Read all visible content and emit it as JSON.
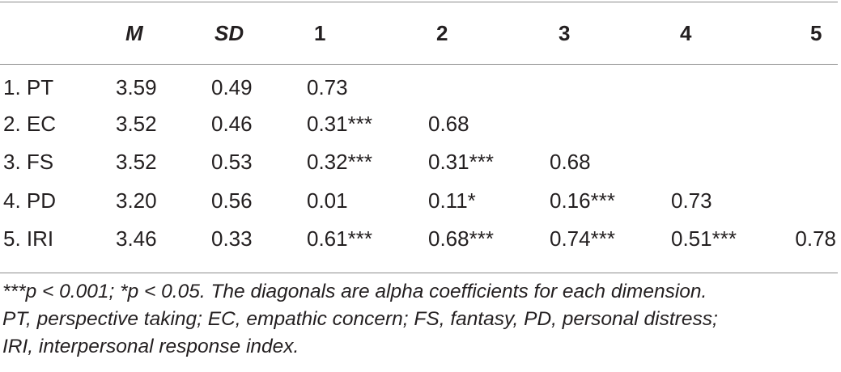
{
  "table": {
    "headers": [
      "",
      "M",
      "SD",
      "1",
      "2",
      "3",
      "4",
      "5"
    ],
    "rows": [
      [
        "1. PT",
        "3.59",
        "0.49",
        "0.73",
        "",
        "",
        "",
        ""
      ],
      [
        "2. EC",
        "3.52",
        "0.46",
        "0.31***",
        "0.68",
        "",
        "",
        ""
      ],
      [
        "3. FS",
        "3.52",
        "0.53",
        "0.32***",
        "0.31***",
        "0.68",
        "",
        ""
      ],
      [
        "4. PD",
        "3.20",
        "0.56",
        "0.01",
        "0.11*",
        "0.16***",
        "0.73",
        ""
      ],
      [
        "5. IRI",
        "3.46",
        "0.33",
        "0.61***",
        "0.68***",
        "0.74***",
        "0.51***",
        "0.78"
      ]
    ]
  },
  "note": {
    "line1": "***p < 0.001; *p < 0.05. The diagonals are alpha coefficients for each dimension.",
    "line2": "PT, perspective taking; EC, empathic concern; FS, fantasy, PD, personal distress;",
    "line3": "IRI, interpersonal response index."
  }
}
